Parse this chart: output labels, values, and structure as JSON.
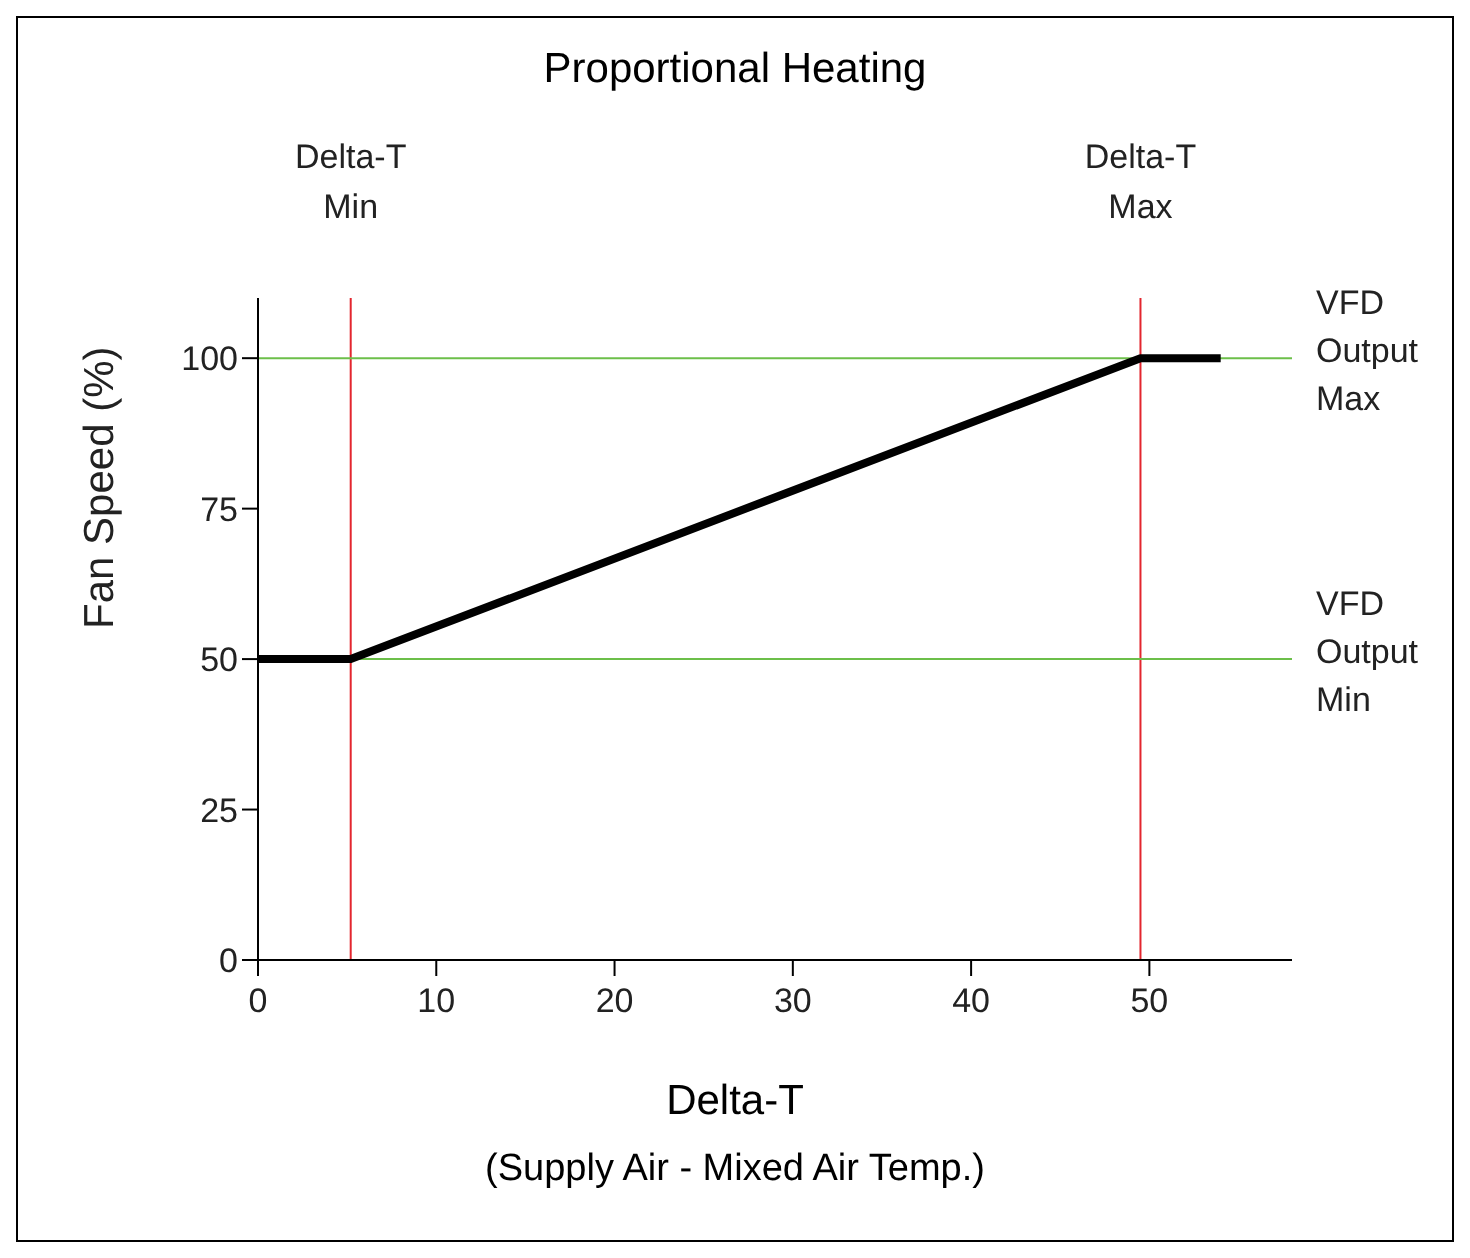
{
  "chart_data": {
    "type": "line",
    "title": "Proportional Heating",
    "xlabel": "Delta-T",
    "ylabel": "Fan Speed (%)",
    "annotations": [
      "(Supply Air - Mixed Air Temp.)"
    ],
    "x": [
      0,
      5.2,
      49.5,
      54
    ],
    "series": [
      {
        "color": "#000000",
        "values": [
          50,
          50,
          100,
          100
        ]
      }
    ],
    "xlim": [
      0,
      58
    ],
    "xticks": [
      0,
      10,
      20,
      30,
      40,
      50
    ],
    "ylim": [
      0,
      110
    ],
    "yticks": [
      0,
      25,
      50,
      75,
      100
    ],
    "ref_lines": [
      {
        "axis": "x",
        "value": 5.2,
        "label": "Delta-T Min",
        "color": "#e3262e"
      },
      {
        "axis": "x",
        "value": 49.5,
        "label": "Delta-T Max",
        "color": "#e3262e"
      },
      {
        "axis": "y",
        "value": 100,
        "label": "VFD Output Max",
        "color": "#6cbf4a"
      },
      {
        "axis": "y",
        "value": 50,
        "label": "VFD Output Min",
        "color": "#6cbf4a"
      }
    ],
    "grid": false,
    "legend": false,
    "marker": "none",
    "line_style": "solid"
  }
}
